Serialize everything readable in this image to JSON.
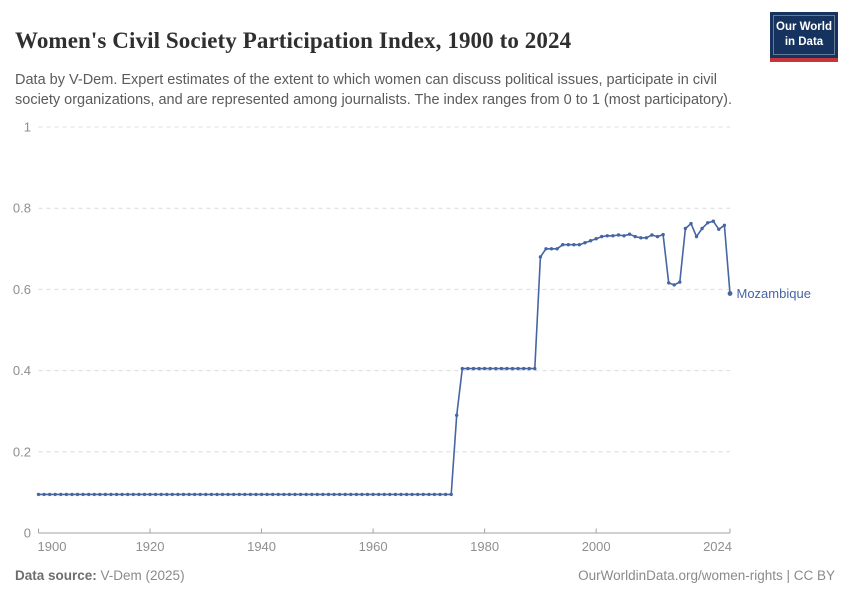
{
  "header": {
    "title": "Women's Civil Society Participation Index, 1900 to 2024",
    "subtitle": "Data by V-Dem. Expert estimates of the extent to which women can discuss political issues, participate in civil society organizations, and are represented among journalists. The index ranges from 0 to 1 (most participatory).",
    "logo": {
      "line1": "Our World",
      "line2": "in Data"
    }
  },
  "footer": {
    "source_label": "Data source:",
    "source_value": " V-Dem (2025)",
    "attribution": "OurWorldinData.org/women-rights | CC BY"
  },
  "colors": {
    "line": "#4665a3",
    "entity_label": "#4665a3",
    "gridline": "#dcdcdc",
    "axis": "#a3a3a3",
    "tick_text": "#8f8f8f",
    "logo_bg": "#163360",
    "logo_red": "#c5353a"
  },
  "chart_data": {
    "type": "line",
    "title": "Women's Civil Society Participation Index, 1900 to 2024",
    "entity": "Mozambique",
    "xlabel": "",
    "ylabel": "",
    "xlim": [
      1900,
      2024
    ],
    "ylim": [
      0,
      1
    ],
    "x_ticks": [
      1900,
      1920,
      1940,
      1960,
      1980,
      2000,
      2024
    ],
    "y_ticks": [
      0,
      0.2,
      0.4,
      0.6,
      0.8,
      1
    ],
    "grid": "horizontal-dashed",
    "legend_position": "end-of-line-label",
    "x": [
      1900,
      1901,
      1902,
      1903,
      1904,
      1905,
      1906,
      1907,
      1908,
      1909,
      1910,
      1911,
      1912,
      1913,
      1914,
      1915,
      1916,
      1917,
      1918,
      1919,
      1920,
      1921,
      1922,
      1923,
      1924,
      1925,
      1926,
      1927,
      1928,
      1929,
      1930,
      1931,
      1932,
      1933,
      1934,
      1935,
      1936,
      1937,
      1938,
      1939,
      1940,
      1941,
      1942,
      1943,
      1944,
      1945,
      1946,
      1947,
      1948,
      1949,
      1950,
      1951,
      1952,
      1953,
      1954,
      1955,
      1956,
      1957,
      1958,
      1959,
      1960,
      1961,
      1962,
      1963,
      1964,
      1965,
      1966,
      1967,
      1968,
      1969,
      1970,
      1971,
      1972,
      1973,
      1974,
      1975,
      1976,
      1977,
      1978,
      1979,
      1980,
      1981,
      1982,
      1983,
      1984,
      1985,
      1986,
      1987,
      1988,
      1989,
      1990,
      1991,
      1992,
      1993,
      1994,
      1995,
      1996,
      1997,
      1998,
      1999,
      2000,
      2001,
      2002,
      2003,
      2004,
      2005,
      2006,
      2007,
      2008,
      2009,
      2010,
      2011,
      2012,
      2013,
      2014,
      2015,
      2016,
      2017,
      2018,
      2019,
      2020,
      2021,
      2022,
      2023,
      2024
    ],
    "values": [
      0.095,
      0.095,
      0.095,
      0.095,
      0.095,
      0.095,
      0.095,
      0.095,
      0.095,
      0.095,
      0.095,
      0.095,
      0.095,
      0.095,
      0.095,
      0.095,
      0.095,
      0.095,
      0.095,
      0.095,
      0.095,
      0.095,
      0.095,
      0.095,
      0.095,
      0.095,
      0.095,
      0.095,
      0.095,
      0.095,
      0.095,
      0.095,
      0.095,
      0.095,
      0.095,
      0.095,
      0.095,
      0.095,
      0.095,
      0.095,
      0.095,
      0.095,
      0.095,
      0.095,
      0.095,
      0.095,
      0.095,
      0.095,
      0.095,
      0.095,
      0.095,
      0.095,
      0.095,
      0.095,
      0.095,
      0.095,
      0.095,
      0.095,
      0.095,
      0.095,
      0.095,
      0.095,
      0.095,
      0.095,
      0.095,
      0.095,
      0.095,
      0.095,
      0.095,
      0.095,
      0.095,
      0.095,
      0.095,
      0.095,
      0.095,
      0.29,
      0.405,
      0.405,
      0.405,
      0.405,
      0.405,
      0.405,
      0.405,
      0.405,
      0.405,
      0.405,
      0.405,
      0.405,
      0.405,
      0.405,
      0.68,
      0.7,
      0.7,
      0.7,
      0.71,
      0.71,
      0.71,
      0.71,
      0.715,
      0.72,
      0.725,
      0.73,
      0.732,
      0.732,
      0.734,
      0.732,
      0.736,
      0.73,
      0.727,
      0.727,
      0.734,
      0.73,
      0.735,
      0.616,
      0.611,
      0.618,
      0.75,
      0.762,
      0.73,
      0.75,
      0.764,
      0.768,
      0.748,
      0.758,
      0.59
    ]
  }
}
